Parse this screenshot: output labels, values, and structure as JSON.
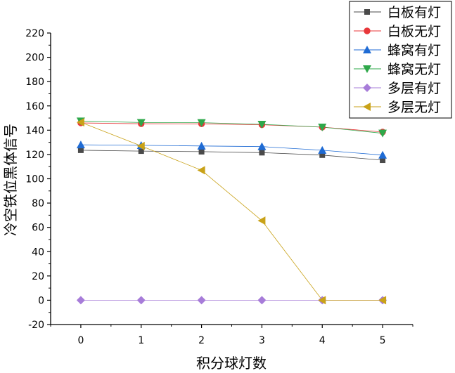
{
  "chart_data": {
    "type": "line",
    "title": "",
    "xlabel": "积分球灯数",
    "ylabel": "冷空铁位黑体信号",
    "x": [
      0,
      1,
      2,
      3,
      4,
      5
    ],
    "xlim": [
      -0.5,
      5.5
    ],
    "ylim": [
      -20,
      220
    ],
    "x_ticks": [
      0,
      1,
      2,
      3,
      4,
      5
    ],
    "y_ticks": [
      -20,
      0,
      20,
      40,
      60,
      80,
      100,
      120,
      140,
      160,
      180,
      200,
      220
    ],
    "grid": false,
    "legend_position": "top-right",
    "series": [
      {
        "name": "白板有灯",
        "marker": "square",
        "color": "#4a4a4a",
        "values": [
          123.5,
          122.8,
          122.3,
          121.5,
          119.5,
          115.3
        ]
      },
      {
        "name": "白板无灯",
        "marker": "circle",
        "color": "#e8373a",
        "values": [
          146,
          145.3,
          145.2,
          144.5,
          142.5,
          138.5
        ]
      },
      {
        "name": "蜂窝有灯",
        "marker": "triangle-up",
        "color": "#1f6bd4",
        "values": [
          128,
          127.5,
          127,
          126.5,
          123.5,
          119.5
        ]
      },
      {
        "name": "蜂窝无灯",
        "marker": "triangle-down",
        "color": "#2ea84a",
        "values": [
          147.5,
          146.3,
          146.2,
          144.8,
          142.5,
          137.5
        ]
      },
      {
        "name": "多层有灯",
        "marker": "diamond",
        "color": "#a77cd9",
        "values": [
          0,
          0,
          0,
          0,
          0,
          0
        ]
      },
      {
        "name": "多层无灯",
        "marker": "triangle-left",
        "color": "#c9a218",
        "values": [
          146.5,
          127,
          107,
          65.5,
          0,
          0
        ]
      }
    ]
  }
}
